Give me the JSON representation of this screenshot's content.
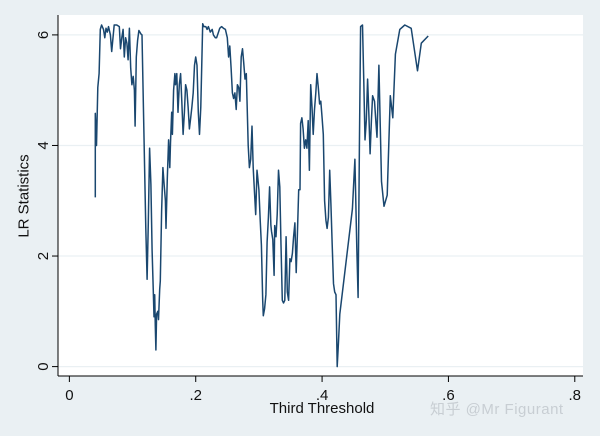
{
  "chart_data": {
    "type": "line",
    "title": "",
    "xlabel": "Third Threshold",
    "ylabel": "LR Statistics",
    "xlim": [
      -0.018,
      0.813
    ],
    "ylim": [
      -0.17,
      6.36
    ],
    "xticks": [
      0,
      0.2,
      0.4,
      0.6,
      0.8
    ],
    "xtick_labels": [
      "0",
      ".2",
      ".4",
      ".6",
      ".8"
    ],
    "yticks": [
      0,
      2,
      4,
      6
    ],
    "ytick_labels": [
      "0",
      "2",
      "4",
      "6"
    ],
    "grid": "horizontal",
    "legend": "none",
    "line_color": "#1a476f",
    "series": [
      {
        "name": "LR Statistics",
        "points": [
          [
            0.041,
            3.06
          ],
          [
            0.041,
            4.58
          ],
          [
            0.043,
            4.0
          ],
          [
            0.045,
            5.05
          ],
          [
            0.047,
            5.3
          ],
          [
            0.049,
            6.1
          ],
          [
            0.051,
            6.18
          ],
          [
            0.054,
            6.1
          ],
          [
            0.056,
            5.95
          ],
          [
            0.058,
            6.12
          ],
          [
            0.06,
            6.05
          ],
          [
            0.062,
            6.15
          ],
          [
            0.065,
            6.0
          ],
          [
            0.067,
            5.7
          ],
          [
            0.069,
            5.95
          ],
          [
            0.071,
            6.18
          ],
          [
            0.075,
            6.18
          ],
          [
            0.079,
            6.15
          ],
          [
            0.081,
            5.75
          ],
          [
            0.083,
            5.95
          ],
          [
            0.085,
            6.1
          ],
          [
            0.087,
            5.6
          ],
          [
            0.089,
            5.95
          ],
          [
            0.091,
            5.85
          ],
          [
            0.093,
            5.55
          ],
          [
            0.095,
            6.12
          ],
          [
            0.097,
            5.4
          ],
          [
            0.099,
            5.1
          ],
          [
            0.101,
            5.25
          ],
          [
            0.103,
            5.0
          ],
          [
            0.104,
            4.35
          ],
          [
            0.106,
            5.6
          ],
          [
            0.108,
            5.9
          ],
          [
            0.11,
            6.08
          ],
          [
            0.113,
            6.02
          ],
          [
            0.115,
            6.0
          ],
          [
            0.119,
            3.6
          ],
          [
            0.121,
            2.5
          ],
          [
            0.123,
            1.58
          ],
          [
            0.125,
            2.6
          ],
          [
            0.127,
            3.95
          ],
          [
            0.129,
            3.3
          ],
          [
            0.131,
            2.1
          ],
          [
            0.133,
            1.3
          ],
          [
            0.134,
            0.9
          ],
          [
            0.135,
            1.3
          ],
          [
            0.136,
            0.73
          ],
          [
            0.137,
            0.3
          ],
          [
            0.138,
            0.95
          ],
          [
            0.14,
            1.0
          ],
          [
            0.141,
            0.85
          ],
          [
            0.143,
            1.4
          ],
          [
            0.144,
            1.55
          ],
          [
            0.146,
            2.8
          ],
          [
            0.148,
            3.6
          ],
          [
            0.15,
            3.3
          ],
          [
            0.152,
            3.0
          ],
          [
            0.153,
            2.5
          ],
          [
            0.155,
            3.4
          ],
          [
            0.157,
            4.1
          ],
          [
            0.159,
            3.6
          ],
          [
            0.16,
            4.05
          ],
          [
            0.162,
            4.6
          ],
          [
            0.163,
            4.2
          ],
          [
            0.165,
            5.0
          ],
          [
            0.167,
            5.3
          ],
          [
            0.168,
            5.1
          ],
          [
            0.17,
            5.3
          ],
          [
            0.172,
            4.6
          ],
          [
            0.174,
            5.1
          ],
          [
            0.176,
            5.3
          ],
          [
            0.178,
            4.8
          ],
          [
            0.18,
            4.2
          ],
          [
            0.182,
            4.6
          ],
          [
            0.184,
            5.1
          ],
          [
            0.186,
            5.0
          ],
          [
            0.188,
            4.7
          ],
          [
            0.19,
            4.3
          ],
          [
            0.192,
            4.5
          ],
          [
            0.194,
            4.7
          ],
          [
            0.196,
            4.95
          ],
          [
            0.198,
            5.45
          ],
          [
            0.2,
            5.6
          ],
          [
            0.202,
            5.45
          ],
          [
            0.204,
            4.6
          ],
          [
            0.206,
            4.2
          ],
          [
            0.208,
            4.7
          ],
          [
            0.211,
            6.2
          ],
          [
            0.213,
            6.15
          ],
          [
            0.216,
            6.15
          ],
          [
            0.218,
            6.1
          ],
          [
            0.22,
            6.15
          ],
          [
            0.223,
            6.05
          ],
          [
            0.226,
            6.1
          ],
          [
            0.228,
            6.0
          ],
          [
            0.231,
            5.95
          ],
          [
            0.233,
            5.95
          ],
          [
            0.236,
            6.05
          ],
          [
            0.238,
            6.12
          ],
          [
            0.241,
            6.15
          ],
          [
            0.244,
            6.12
          ],
          [
            0.247,
            6.1
          ],
          [
            0.25,
            5.95
          ],
          [
            0.252,
            5.6
          ],
          [
            0.254,
            5.8
          ],
          [
            0.256,
            5.4
          ],
          [
            0.258,
            4.95
          ],
          [
            0.26,
            4.85
          ],
          [
            0.262,
            4.95
          ],
          [
            0.264,
            4.65
          ],
          [
            0.266,
            5.1
          ],
          [
            0.268,
            5.05
          ],
          [
            0.27,
            4.8
          ],
          [
            0.272,
            5.6
          ],
          [
            0.274,
            5.75
          ],
          [
            0.276,
            5.5
          ],
          [
            0.278,
            5.2
          ],
          [
            0.28,
            5.3
          ],
          [
            0.283,
            4.0
          ],
          [
            0.285,
            3.6
          ],
          [
            0.287,
            3.75
          ],
          [
            0.289,
            4.35
          ],
          [
            0.291,
            3.6
          ],
          [
            0.293,
            3.15
          ],
          [
            0.295,
            2.75
          ],
          [
            0.297,
            3.55
          ],
          [
            0.298,
            3.45
          ],
          [
            0.3,
            3.2
          ],
          [
            0.302,
            2.65
          ],
          [
            0.304,
            2.2
          ],
          [
            0.306,
            1.2
          ],
          [
            0.307,
            0.92
          ],
          [
            0.309,
            1.05
          ],
          [
            0.311,
            1.3
          ],
          [
            0.313,
            2.25
          ],
          [
            0.315,
            2.7
          ],
          [
            0.317,
            3.25
          ],
          [
            0.319,
            2.55
          ],
          [
            0.32,
            2.45
          ],
          [
            0.322,
            2.3
          ],
          [
            0.324,
            1.65
          ],
          [
            0.325,
            2.55
          ],
          [
            0.327,
            2.35
          ],
          [
            0.329,
            2.75
          ],
          [
            0.331,
            3.55
          ],
          [
            0.333,
            3.25
          ],
          [
            0.335,
            2.2
          ],
          [
            0.337,
            1.2
          ],
          [
            0.339,
            1.15
          ],
          [
            0.341,
            1.2
          ],
          [
            0.343,
            2.35
          ],
          [
            0.345,
            1.35
          ],
          [
            0.347,
            1.2
          ],
          [
            0.349,
            1.95
          ],
          [
            0.351,
            1.9
          ],
          [
            0.353,
            2.05
          ],
          [
            0.355,
            2.35
          ],
          [
            0.357,
            2.6
          ],
          [
            0.359,
            1.7
          ],
          [
            0.361,
            2.4
          ],
          [
            0.363,
            3.2
          ],
          [
            0.365,
            3.2
          ],
          [
            0.366,
            4.4
          ],
          [
            0.368,
            4.5
          ],
          [
            0.37,
            4.3
          ],
          [
            0.372,
            3.95
          ],
          [
            0.374,
            4.1
          ],
          [
            0.376,
            3.95
          ],
          [
            0.378,
            4.45
          ],
          [
            0.38,
            3.55
          ],
          [
            0.382,
            5.1
          ],
          [
            0.384,
            4.7
          ],
          [
            0.386,
            4.2
          ],
          [
            0.388,
            4.65
          ],
          [
            0.39,
            4.95
          ],
          [
            0.392,
            5.3
          ],
          [
            0.394,
            5.05
          ],
          [
            0.396,
            4.75
          ],
          [
            0.398,
            4.8
          ],
          [
            0.4,
            4.5
          ],
          [
            0.402,
            4.2
          ],
          [
            0.404,
            3.0
          ],
          [
            0.406,
            2.65
          ],
          [
            0.408,
            2.5
          ],
          [
            0.41,
            2.7
          ],
          [
            0.412,
            3.55
          ],
          [
            0.414,
            2.95
          ],
          [
            0.416,
            2.2
          ],
          [
            0.418,
            1.5
          ],
          [
            0.42,
            1.35
          ],
          [
            0.422,
            1.3
          ],
          [
            0.424,
            0.0
          ],
          [
            0.426,
            0.45
          ],
          [
            0.428,
            0.95
          ],
          [
            0.448,
            2.85
          ],
          [
            0.452,
            3.75
          ],
          [
            0.455,
            2.15
          ],
          [
            0.457,
            1.25
          ],
          [
            0.459,
            4.0
          ],
          [
            0.461,
            6.15
          ],
          [
            0.464,
            6.18
          ],
          [
            0.466,
            5.15
          ],
          [
            0.468,
            4.1
          ],
          [
            0.47,
            4.45
          ],
          [
            0.472,
            5.2
          ],
          [
            0.474,
            4.6
          ],
          [
            0.476,
            3.85
          ],
          [
            0.478,
            4.45
          ],
          [
            0.48,
            4.9
          ],
          [
            0.483,
            4.8
          ],
          [
            0.485,
            4.45
          ],
          [
            0.487,
            4.15
          ],
          [
            0.49,
            5.45
          ],
          [
            0.494,
            3.35
          ],
          [
            0.498,
            2.9
          ],
          [
            0.503,
            3.1
          ],
          [
            0.508,
            4.9
          ],
          [
            0.512,
            4.5
          ],
          [
            0.516,
            5.65
          ],
          [
            0.523,
            6.1
          ],
          [
            0.531,
            6.18
          ],
          [
            0.541,
            6.12
          ],
          [
            0.551,
            5.35
          ],
          [
            0.557,
            5.85
          ],
          [
            0.568,
            5.98
          ]
        ]
      }
    ]
  },
  "watermark": "知乎 @Mr Figurant"
}
